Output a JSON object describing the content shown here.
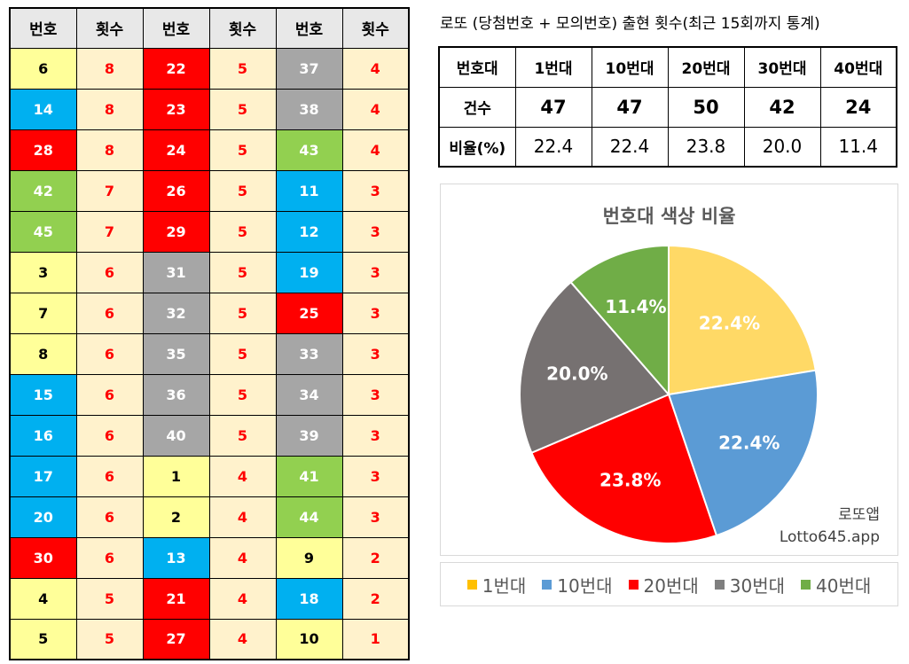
{
  "freq_table": {
    "headers": [
      "번호",
      "횟수",
      "번호",
      "횟수",
      "번호",
      "횟수"
    ],
    "columns": [
      [
        {
          "num": "6",
          "count": "8",
          "band": "c1"
        },
        {
          "num": "14",
          "count": "8",
          "band": "c10"
        },
        {
          "num": "28",
          "count": "8",
          "band": "c20"
        },
        {
          "num": "42",
          "count": "7",
          "band": "c40"
        },
        {
          "num": "45",
          "count": "7",
          "band": "c40"
        },
        {
          "num": "3",
          "count": "6",
          "band": "c1"
        },
        {
          "num": "7",
          "count": "6",
          "band": "c1"
        },
        {
          "num": "8",
          "count": "6",
          "band": "c1"
        },
        {
          "num": "15",
          "count": "6",
          "band": "c10"
        },
        {
          "num": "16",
          "count": "6",
          "band": "c10"
        },
        {
          "num": "17",
          "count": "6",
          "band": "c10"
        },
        {
          "num": "20",
          "count": "6",
          "band": "c10"
        },
        {
          "num": "30",
          "count": "6",
          "band": "c20"
        },
        {
          "num": "4",
          "count": "5",
          "band": "c1"
        },
        {
          "num": "5",
          "count": "5",
          "band": "c1"
        }
      ],
      [
        {
          "num": "22",
          "count": "5",
          "band": "c20"
        },
        {
          "num": "23",
          "count": "5",
          "band": "c20"
        },
        {
          "num": "24",
          "count": "5",
          "band": "c20"
        },
        {
          "num": "26",
          "count": "5",
          "band": "c20"
        },
        {
          "num": "29",
          "count": "5",
          "band": "c20"
        },
        {
          "num": "31",
          "count": "5",
          "band": "c30"
        },
        {
          "num": "32",
          "count": "5",
          "band": "c30"
        },
        {
          "num": "35",
          "count": "5",
          "band": "c30"
        },
        {
          "num": "36",
          "count": "5",
          "band": "c30"
        },
        {
          "num": "40",
          "count": "5",
          "band": "c30"
        },
        {
          "num": "1",
          "count": "4",
          "band": "c1"
        },
        {
          "num": "2",
          "count": "4",
          "band": "c1"
        },
        {
          "num": "13",
          "count": "4",
          "band": "c10"
        },
        {
          "num": "21",
          "count": "4",
          "band": "c20"
        },
        {
          "num": "27",
          "count": "4",
          "band": "c20"
        }
      ],
      [
        {
          "num": "37",
          "count": "4",
          "band": "c30"
        },
        {
          "num": "38",
          "count": "4",
          "band": "c30"
        },
        {
          "num": "43",
          "count": "4",
          "band": "c40"
        },
        {
          "num": "11",
          "count": "3",
          "band": "c10"
        },
        {
          "num": "12",
          "count": "3",
          "band": "c10"
        },
        {
          "num": "19",
          "count": "3",
          "band": "c10"
        },
        {
          "num": "25",
          "count": "3",
          "band": "c20"
        },
        {
          "num": "33",
          "count": "3",
          "band": "c30"
        },
        {
          "num": "34",
          "count": "3",
          "band": "c30"
        },
        {
          "num": "39",
          "count": "3",
          "band": "c30"
        },
        {
          "num": "41",
          "count": "3",
          "band": "c40"
        },
        {
          "num": "44",
          "count": "3",
          "band": "c40"
        },
        {
          "num": "9",
          "count": "2",
          "band": "c1"
        },
        {
          "num": "18",
          "count": "2",
          "band": "c10"
        },
        {
          "num": "10",
          "count": "1",
          "band": "c1"
        }
      ]
    ]
  },
  "stats_title": "로또 (당첨번호 + 모의번호) 출현 횟수(최근 15회까지 통계)",
  "summary": {
    "header": [
      "번호대",
      "1번대",
      "10번대",
      "20번대",
      "30번대",
      "40번대"
    ],
    "count_row": [
      "건수",
      "47",
      "47",
      "50",
      "42",
      "24"
    ],
    "ratio_row": [
      "비율(%)",
      "22.4",
      "22.4",
      "23.8",
      "20.0",
      "11.4"
    ]
  },
  "watermark": {
    "line1": "로또앱",
    "line2": "Lotto645.app"
  },
  "chart_data": {
    "type": "pie",
    "title": "번호대 색상 비율",
    "categories": [
      "1번대",
      "10번대",
      "20번대",
      "30번대",
      "40번대"
    ],
    "values": [
      22.4,
      22.4,
      23.8,
      20.0,
      11.4
    ],
    "labels": [
      "22.4%",
      "22.4%",
      "23.8%",
      "20.0%",
      "11.4%"
    ],
    "colors": [
      "#ffd966",
      "#5b9bd5",
      "#ff0000",
      "#767171",
      "#70ad47"
    ],
    "legend": "bottom"
  },
  "legend_colors": [
    "#ffc000",
    "#5b9bd5",
    "#ff0000",
    "#7f7f7f",
    "#70ad47"
  ]
}
